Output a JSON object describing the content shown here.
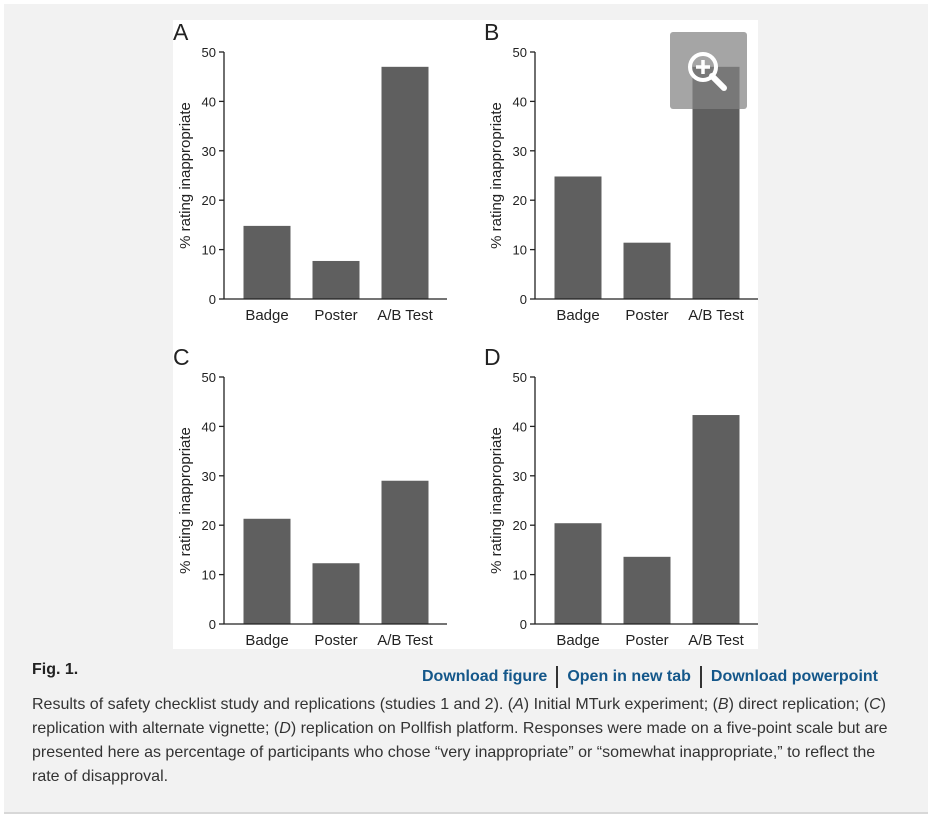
{
  "figure": {
    "label": "Fig. 1.",
    "links": {
      "download_figure": "Download figure",
      "open_new_tab": "Open in new tab",
      "download_powerpoint": "Download powerpoint"
    },
    "caption": {
      "p1": "Results of safety checklist study and replications (studies 1 and 2). (",
      "A": "A",
      "p2": ") Initial MTurk experiment; (",
      "B": "B",
      "p3": ") direct replication; (",
      "C": "C",
      "p4": ") replication with alternate vignette; (",
      "D": "D",
      "p5": ") replication on Pollfish platform. Responses were made on a five-point scale but are presented here as percentage of participants who chose “very inappropriate” or “somewhat inappropriate,” to reflect the rate of disapproval."
    },
    "zoom_icon": "zoom-in-icon",
    "bar_color": "#5f5f5f"
  },
  "chart_data": [
    {
      "type": "bar",
      "panel": "A",
      "categories": [
        "Badge",
        "Poster",
        "A/B Test"
      ],
      "values": [
        14.8,
        7.7,
        47
      ],
      "ylabel": "% rating inappropriate",
      "ylim": [
        0,
        50
      ],
      "yticks": [
        "0",
        "10",
        "20",
        "30",
        "40",
        "50"
      ]
    },
    {
      "type": "bar",
      "panel": "B",
      "categories": [
        "Badge",
        "Poster",
        "A/B Test"
      ],
      "values": [
        24.8,
        11.4,
        47
      ],
      "ylabel": "% rating inappropriate",
      "ylim": [
        0,
        50
      ],
      "yticks": [
        "0",
        "10",
        "20",
        "30",
        "40",
        "50"
      ]
    },
    {
      "type": "bar",
      "panel": "C",
      "categories": [
        "Badge",
        "Poster",
        "A/B Test"
      ],
      "values": [
        21.3,
        12.3,
        29
      ],
      "ylabel": "% rating inappropriate",
      "ylim": [
        0,
        50
      ],
      "yticks": [
        "0",
        "10",
        "20",
        "30",
        "40",
        "50"
      ]
    },
    {
      "type": "bar",
      "panel": "D",
      "categories": [
        "Badge",
        "Poster",
        "A/B Test"
      ],
      "values": [
        20.4,
        13.6,
        42.3
      ],
      "ylabel": "% rating inappropriate",
      "ylim": [
        0,
        50
      ],
      "yticks": [
        "0",
        "10",
        "20",
        "30",
        "40",
        "50"
      ]
    }
  ]
}
